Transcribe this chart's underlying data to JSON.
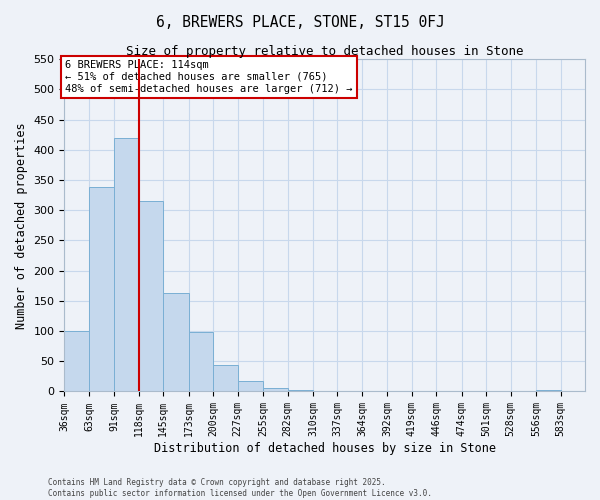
{
  "title": "6, BREWERS PLACE, STONE, ST15 0FJ",
  "subtitle": "Size of property relative to detached houses in Stone",
  "xlabel": "Distribution of detached houses by size in Stone",
  "ylabel": "Number of detached properties",
  "bar_color": "#c5d8ed",
  "bar_edge_color": "#7aafd4",
  "grid_color": "#c8d8ec",
  "background_color": "#eef2f8",
  "vline_x": 118,
  "vline_color": "#cc0000",
  "categories": [
    "36sqm",
    "63sqm",
    "91sqm",
    "118sqm",
    "145sqm",
    "173sqm",
    "200sqm",
    "227sqm",
    "255sqm",
    "282sqm",
    "310sqm",
    "337sqm",
    "364sqm",
    "392sqm",
    "419sqm",
    "446sqm",
    "474sqm",
    "501sqm",
    "528sqm",
    "556sqm",
    "583sqm"
  ],
  "bin_edges": [
    36,
    63,
    91,
    118,
    145,
    173,
    200,
    227,
    255,
    282,
    310,
    337,
    364,
    392,
    419,
    446,
    474,
    501,
    528,
    556,
    583,
    610
  ],
  "values": [
    100,
    339,
    420,
    315,
    163,
    98,
    43,
    17,
    5,
    3,
    0,
    0,
    0,
    0,
    0,
    0,
    0,
    0,
    0,
    2,
    1
  ],
  "ylim": [
    0,
    550
  ],
  "yticks": [
    0,
    50,
    100,
    150,
    200,
    250,
    300,
    350,
    400,
    450,
    500,
    550
  ],
  "annotation_text": "6 BREWERS PLACE: 114sqm\n← 51% of detached houses are smaller (765)\n48% of semi-detached houses are larger (712) →",
  "annotation_box_color": "#ffffff",
  "annotation_box_edge": "#cc0000",
  "footer1": "Contains HM Land Registry data © Crown copyright and database right 2025.",
  "footer2": "Contains public sector information licensed under the Open Government Licence v3.0."
}
